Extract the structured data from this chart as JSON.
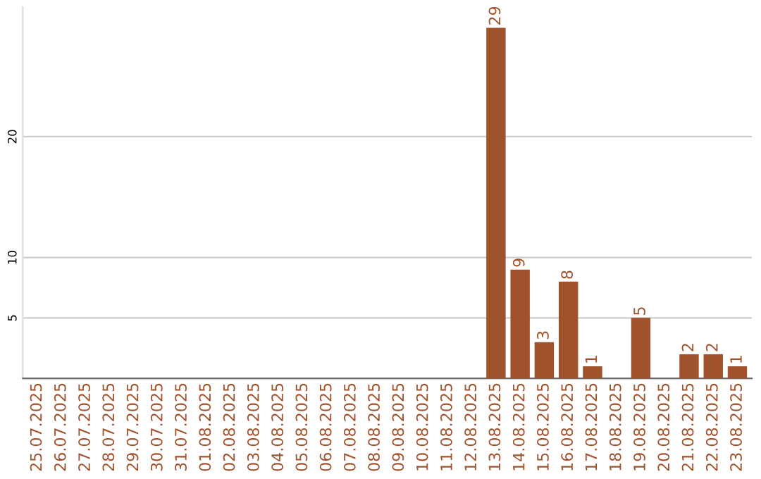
{
  "chart_data": {
    "type": "bar",
    "categories": [
      "25.07.2025",
      "26.07.2025",
      "27.07.2025",
      "28.07.2025",
      "29.07.2025",
      "30.07.2025",
      "31.07.2025",
      "01.08.2025",
      "02.08.2025",
      "03.08.2025",
      "04.08.2025",
      "05.08.2025",
      "06.08.2025",
      "07.08.2025",
      "08.08.2025",
      "09.08.2025",
      "10.08.2025",
      "11.08.2025",
      "12.08.2025",
      "13.08.2025",
      "14.08.2025",
      "15.08.2025",
      "16.08.2025",
      "17.08.2025",
      "18.08.2025",
      "19.08.2025",
      "20.08.2025",
      "21.08.2025",
      "22.08.2025",
      "23.08.2025"
    ],
    "values": [
      0,
      0,
      0,
      0,
      0,
      0,
      0,
      0,
      0,
      0,
      0,
      0,
      0,
      0,
      0,
      0,
      0,
      0,
      0,
      29,
      9,
      3,
      8,
      1,
      0,
      5,
      0,
      2,
      2,
      1
    ],
    "value_labels": [
      null,
      null,
      null,
      null,
      null,
      null,
      null,
      null,
      null,
      null,
      null,
      null,
      null,
      null,
      null,
      null,
      null,
      null,
      null,
      "29",
      "9",
      "3",
      "8",
      "1",
      null,
      "5",
      null,
      "2",
      "2",
      "1"
    ],
    "color": "#a0522d",
    "ylim": [
      0,
      30.7
    ],
    "yticks": [
      5,
      10,
      20
    ],
    "grid": "y"
  }
}
